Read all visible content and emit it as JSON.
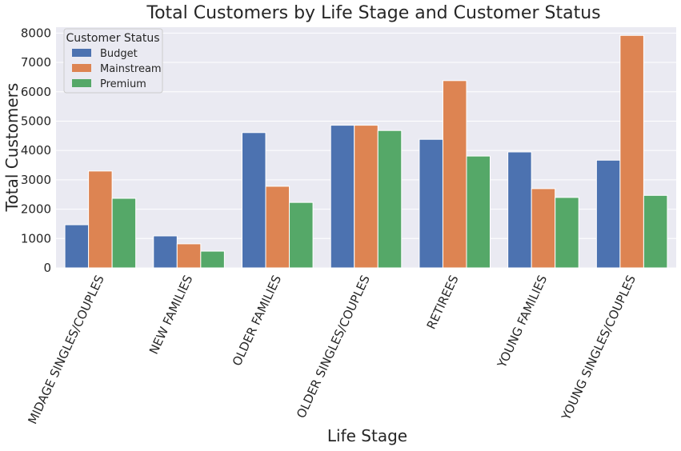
{
  "chart_data": {
    "type": "bar",
    "title": "Total Customers by Life Stage and Customer Status",
    "xlabel": "Life Stage",
    "ylabel": "Total Customers",
    "ylim": [
      0,
      8200
    ],
    "yticks": [
      0,
      1000,
      2000,
      3000,
      4000,
      5000,
      6000,
      7000,
      8000
    ],
    "grid": true,
    "legend": {
      "title": "Customer Status",
      "placement": "top-left"
    },
    "categories": [
      "MIDAGE SINGLES/COUPLES",
      "NEW FAMILIES",
      "OLDER FAMILIES",
      "OLDER SINGLES/COUPLES",
      "RETIREES",
      "YOUNG FAMILIES",
      "YOUNG SINGLES/COUPLES"
    ],
    "series": [
      {
        "name": "Budget",
        "color": "#4c72b0",
        "values": [
          1470,
          1090,
          4610,
          4860,
          4380,
          3950,
          3670
        ]
      },
      {
        "name": "Mainstream",
        "color": "#dd8452",
        "values": [
          3300,
          820,
          2780,
          4860,
          6380,
          2700,
          7920
        ]
      },
      {
        "name": "Premium",
        "color": "#55a868",
        "values": [
          2370,
          570,
          2230,
          4680,
          3810,
          2400,
          2470
        ]
      }
    ]
  }
}
